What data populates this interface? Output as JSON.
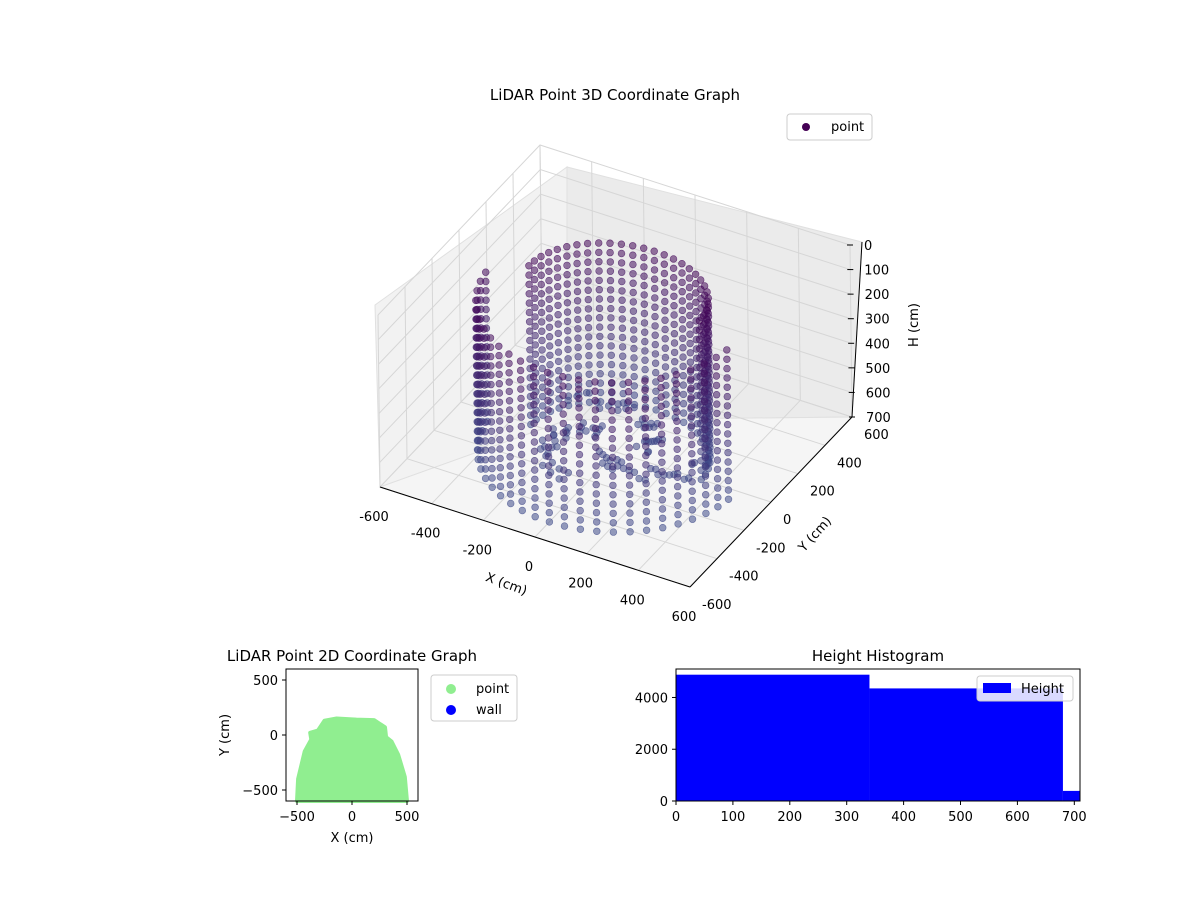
{
  "colors": {
    "point3d_dark": "#440154",
    "point3d_light": "#3e4a89",
    "point2d": "#90ee90",
    "wall": "#0000ff",
    "hist": "#0000ff"
  },
  "chart_data": [
    {
      "type": "scatter",
      "projection": "3d",
      "title": "LiDAR Point 3D Coordinate Graph",
      "xlabel": "X (cm)",
      "ylabel": "Y (cm)",
      "zlabel": "H (cm)",
      "xlim": [
        -600,
        600
      ],
      "ylim": [
        -600,
        600
      ],
      "zlim": [
        700,
        0
      ],
      "xticks": [
        "-600",
        "-400",
        "-200",
        "0",
        "200",
        "400",
        "600"
      ],
      "yticks": [
        "-600",
        "-400",
        "-200",
        "0",
        "200",
        "400",
        "600"
      ],
      "zticks": [
        "0",
        "100",
        "200",
        "300",
        "400",
        "500",
        "600",
        "700"
      ],
      "series": [
        {
          "name": "point",
          "description": "ring of vertical point columns around the scanner, radius ~500 cm front and ~350 cm back, heights 0-700 cm"
        }
      ],
      "legend": "top-right",
      "grid": true
    },
    {
      "type": "scatter",
      "title": "LiDAR Point 2D Coordinate Graph",
      "xlabel": "X (cm)",
      "ylabel": "Y (cm)",
      "xlim": [
        -600,
        600
      ],
      "ylim": [
        -600,
        600
      ],
      "xticks": [
        "-500",
        "0",
        "500"
      ],
      "yticks": [
        "-500",
        "0",
        "500"
      ],
      "series": [
        {
          "name": "point",
          "outline": [
            [
              -500,
              -600
            ],
            [
              -490,
              -400
            ],
            [
              -430,
              -150
            ],
            [
              -370,
              -40
            ],
            [
              -380,
              20
            ],
            [
              -310,
              40
            ],
            [
              -250,
              130
            ],
            [
              -140,
              150
            ],
            [
              40,
              140
            ],
            [
              200,
              135
            ],
            [
              300,
              70
            ],
            [
              310,
              -20
            ],
            [
              360,
              -60
            ],
            [
              420,
              -180
            ],
            [
              480,
              -380
            ],
            [
              500,
              -600
            ]
          ]
        },
        {
          "name": "wall",
          "points": []
        }
      ],
      "legend": "outside-right"
    },
    {
      "type": "bar",
      "title": "Height Histogram",
      "xlabel": "",
      "ylabel": "",
      "xlim": [
        0,
        710
      ],
      "ylim": [
        0,
        5100
      ],
      "xticks": [
        "0",
        "100",
        "200",
        "300",
        "400",
        "500",
        "600",
        "700"
      ],
      "yticks": [
        "0",
        "2000",
        "4000"
      ],
      "bins": [
        {
          "x0": 0,
          "x1": 340,
          "count": 4880
        },
        {
          "x0": 340,
          "x1": 680,
          "count": 4350
        },
        {
          "x0": 680,
          "x1": 710,
          "count": 390
        }
      ],
      "series": [
        {
          "name": "Height"
        }
      ],
      "legend": "top-right"
    }
  ]
}
